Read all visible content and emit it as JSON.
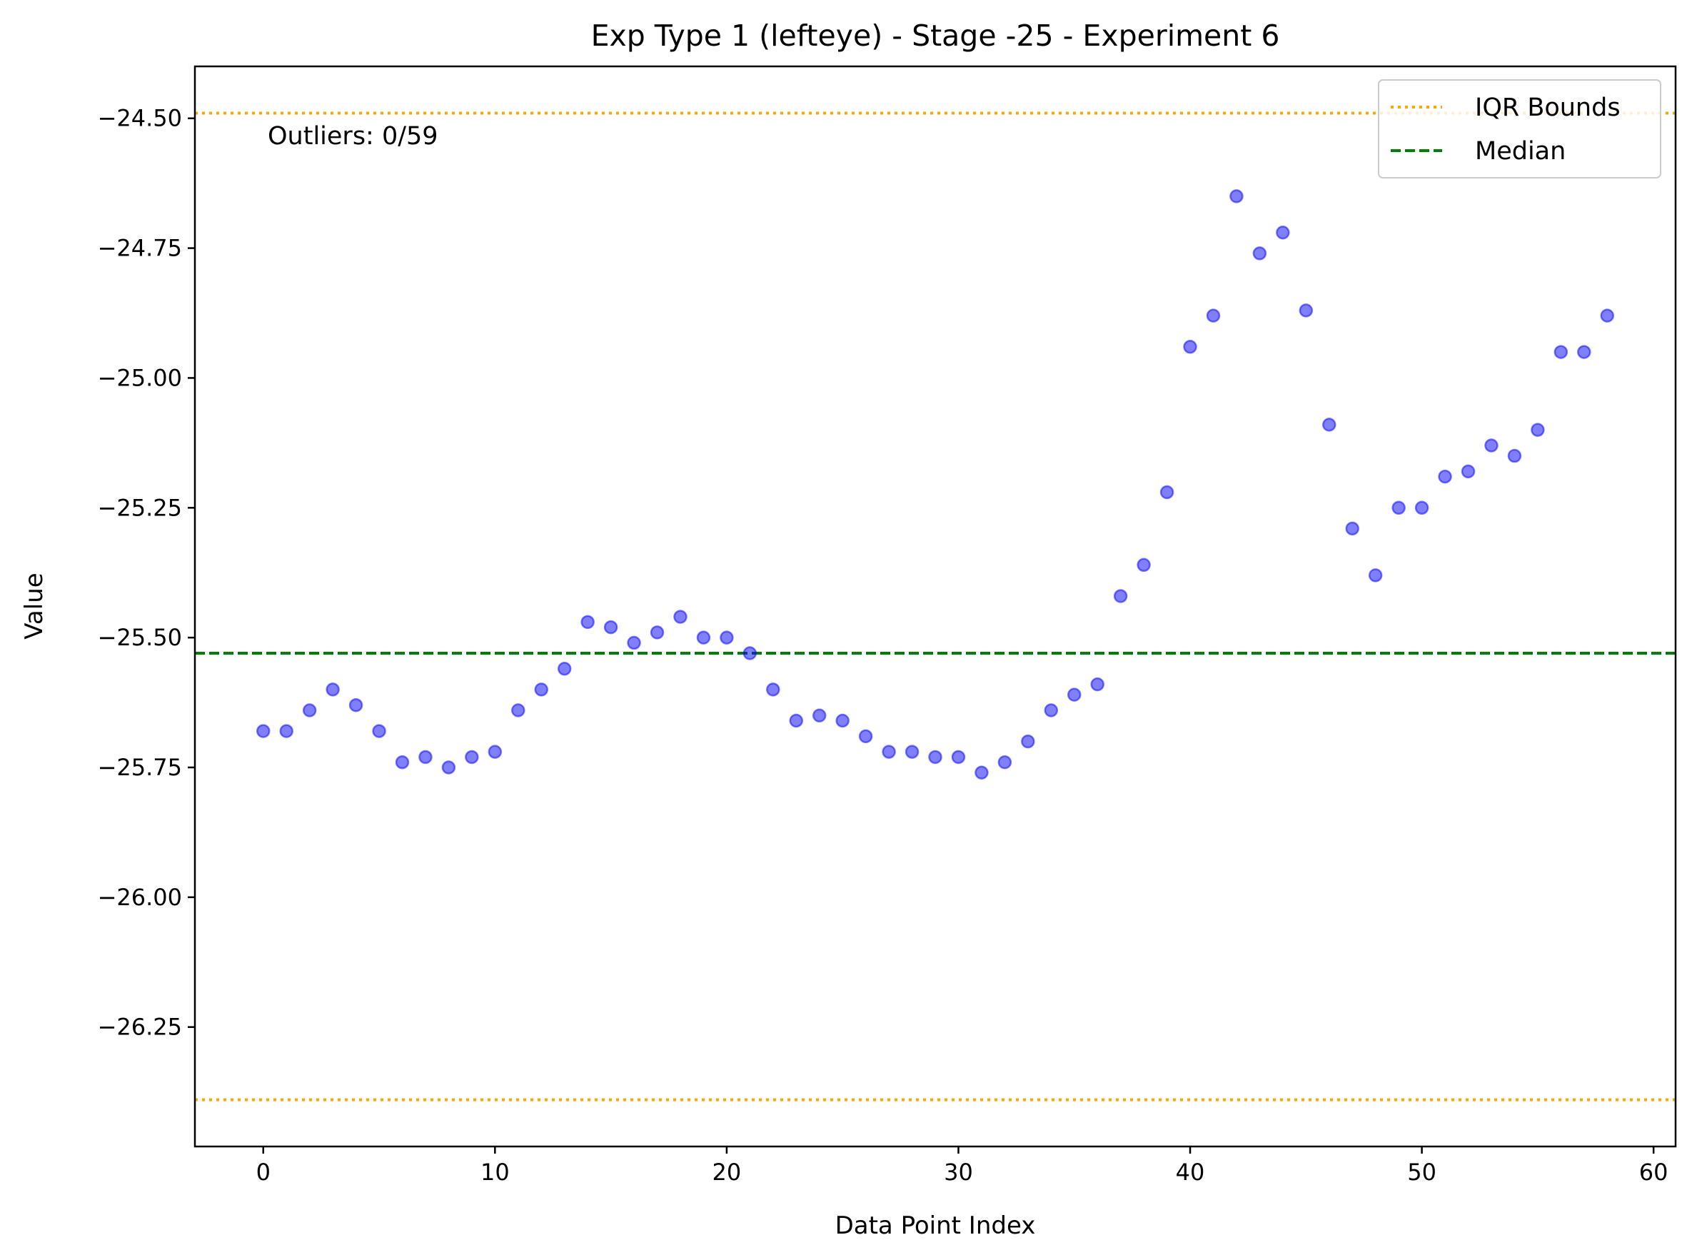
{
  "chart_data": {
    "type": "scatter",
    "title": "Exp Type 1 (lefteye) - Stage -25 - Experiment 6",
    "xlabel": "Data Point Index",
    "ylabel": "Value",
    "xlim": [
      -2.95,
      60.95
    ],
    "ylim": [
      -26.48,
      -24.4
    ],
    "xticks": [
      0,
      10,
      20,
      30,
      40,
      50,
      60
    ],
    "xtick_labels": [
      "0",
      "10",
      "20",
      "30",
      "40",
      "50",
      "60"
    ],
    "yticks": [
      -24.5,
      -24.75,
      -25.0,
      -25.25,
      -25.5,
      -25.75,
      -26.0,
      -26.25
    ],
    "ytick_labels": [
      "−24.50",
      "−24.75",
      "−25.00",
      "−25.25",
      "−25.50",
      "−25.75",
      "−26.00",
      "−26.25"
    ],
    "grid": false,
    "legend_position": "top-right",
    "annotation": "Outliers: 0/59",
    "series": [
      {
        "kind": "points",
        "color": "#0000ff",
        "x": [
          0,
          1,
          2,
          3,
          4,
          5,
          6,
          7,
          8,
          9,
          10,
          11,
          12,
          13,
          14,
          15,
          16,
          17,
          18,
          19,
          20,
          21,
          22,
          23,
          24,
          25,
          26,
          27,
          28,
          29,
          30,
          31,
          32,
          33,
          34,
          35,
          36,
          37,
          38,
          39,
          40,
          41,
          42,
          43,
          44,
          45,
          46,
          47,
          48,
          49,
          50,
          51,
          52,
          53,
          54,
          55,
          56,
          57,
          58
        ],
        "y": [
          -25.68,
          -25.68,
          -25.64,
          -25.6,
          -25.63,
          -25.68,
          -25.74,
          -25.73,
          -25.75,
          -25.73,
          -25.72,
          -25.64,
          -25.6,
          -25.56,
          -25.47,
          -25.48,
          -25.51,
          -25.49,
          -25.46,
          -25.5,
          -25.5,
          -25.53,
          -25.6,
          -25.66,
          -25.65,
          -25.66,
          -25.69,
          -25.72,
          -25.72,
          -25.73,
          -25.73,
          -25.76,
          -25.74,
          -25.7,
          -25.64,
          -25.61,
          -25.59,
          -25.42,
          -25.36,
          -25.22,
          -24.94,
          -24.88,
          -24.65,
          -24.76,
          -24.72,
          -24.87,
          -25.09,
          -25.29,
          -25.38,
          -25.25,
          -25.25,
          -25.19,
          -25.18,
          -25.13,
          -25.15,
          -25.1,
          -24.95,
          -24.95,
          -24.88
        ]
      },
      {
        "kind": "hline",
        "name": "IQR Bounds",
        "y": -24.49,
        "color": "#ffa500",
        "dash": "dotted"
      },
      {
        "kind": "hline",
        "name": "",
        "y": -26.39,
        "color": "#ffa500",
        "dash": "dotted"
      },
      {
        "kind": "hline",
        "name": "Median",
        "y": -25.53,
        "color": "#008000",
        "dash": "dashed"
      }
    ]
  }
}
